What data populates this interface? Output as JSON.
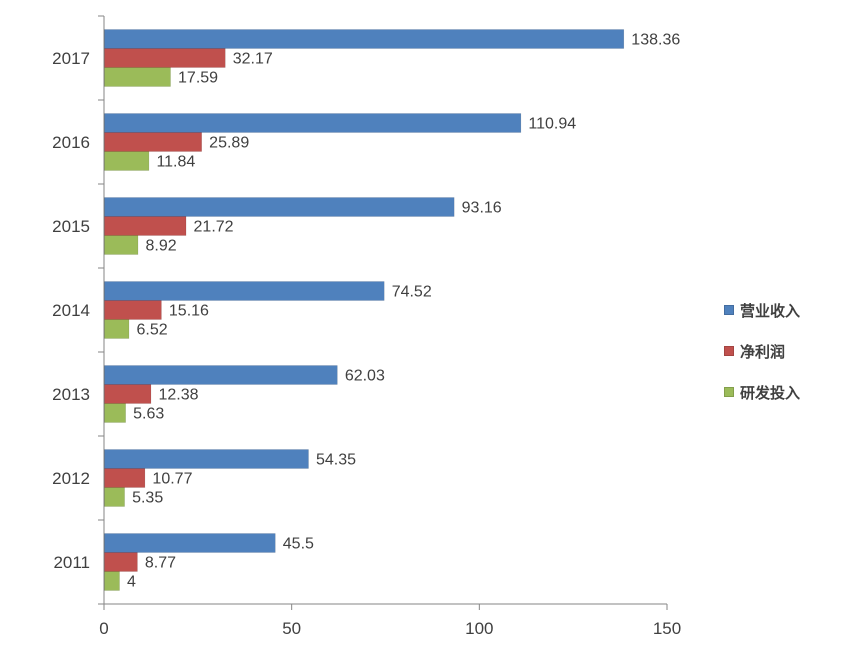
{
  "chart_data": {
    "type": "bar",
    "orientation": "horizontal",
    "categories": [
      "2011",
      "2012",
      "2013",
      "2014",
      "2015",
      "2016",
      "2017"
    ],
    "series": [
      {
        "name": "营业收入",
        "color": "#4F81BD",
        "values": [
          45.5,
          54.35,
          62.03,
          74.52,
          93.16,
          110.94,
          138.36
        ]
      },
      {
        "name": "净利润",
        "color": "#C0504D",
        "values": [
          8.77,
          10.77,
          12.38,
          15.16,
          21.72,
          25.89,
          32.17
        ]
      },
      {
        "name": "研发投入",
        "color": "#9BBB59",
        "values": [
          4,
          5.35,
          5.63,
          6.52,
          8.92,
          11.84,
          17.59
        ]
      }
    ],
    "value_labels": [
      [
        "45.5",
        "54.35",
        "62.03",
        "74.52",
        "93.16",
        "110.94",
        "138.36"
      ],
      [
        "8.77",
        "10.77",
        "12.38",
        "15.16",
        "21.72",
        "25.89",
        "32.17"
      ],
      [
        "4",
        "5.35",
        "5.63",
        "6.52",
        "8.92",
        "11.84",
        "17.59"
      ]
    ],
    "x_ticks": [
      "0",
      "50",
      "100",
      "150"
    ],
    "xlim": [
      0,
      150
    ],
    "title": "",
    "xlabel": "",
    "ylabel": "",
    "grid": false,
    "legend_position": "right",
    "category_order": "bottom-to-top"
  }
}
